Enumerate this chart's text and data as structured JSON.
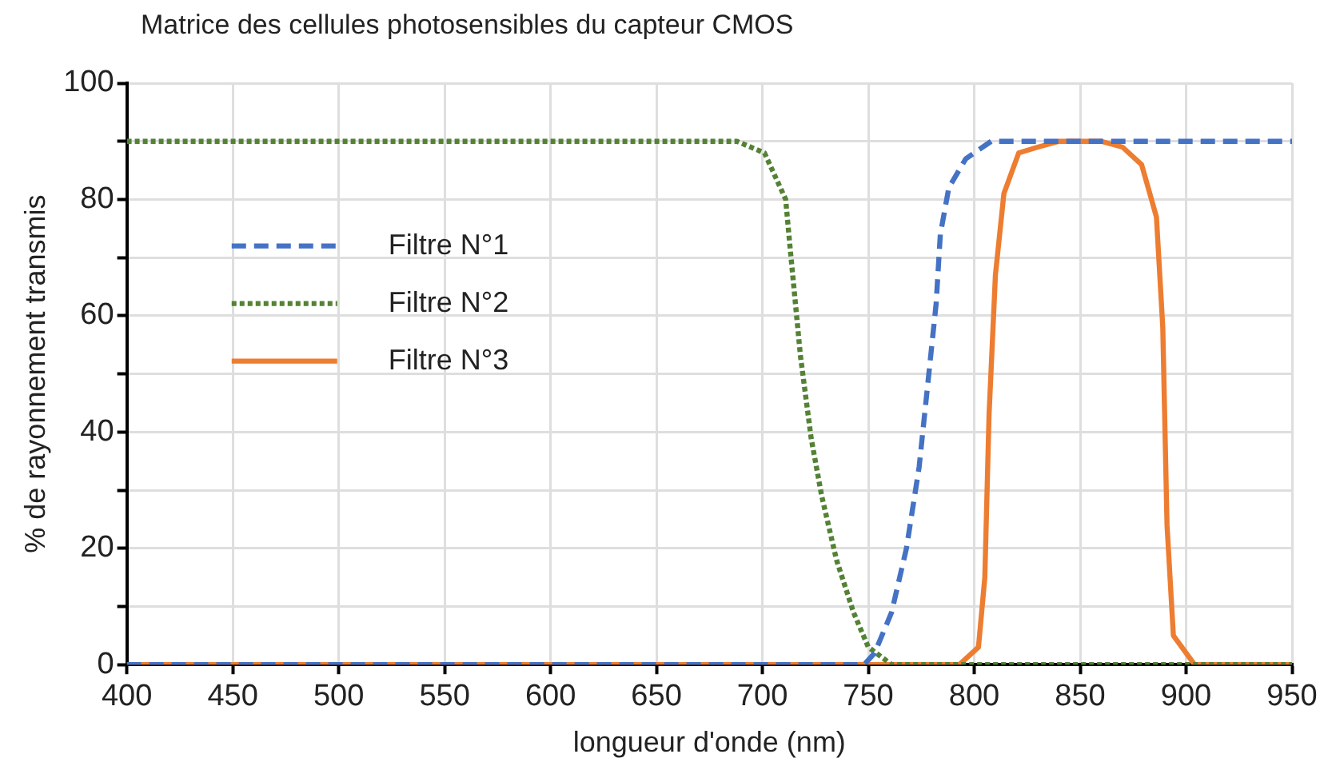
{
  "chart_data": {
    "type": "line",
    "title": "Matrice des cellules photosensibles du capteur CMOS",
    "xlabel": "longueur d'onde (nm)",
    "ylabel": "% de rayonnement transmis",
    "xlim": [
      400,
      950
    ],
    "xticks": [
      400,
      450,
      500,
      550,
      600,
      650,
      700,
      750,
      800,
      850,
      900,
      950
    ],
    "ylim": [
      0,
      100
    ],
    "yticks": [
      0,
      {
        "value": 10,
        "label": null
      },
      20,
      {
        "value": 30,
        "label": null
      },
      40,
      {
        "value": 50,
        "label": null
      },
      60,
      {
        "value": 70,
        "label": null
      },
      80,
      {
        "value": 90,
        "label": null
      },
      100
    ],
    "grid": true,
    "legend": "left",
    "marker": "none",
    "series": [
      {
        "name": "Filtre N°1",
        "color": "#4472c4",
        "line_style": "dashed",
        "x": [
          400,
          748,
          753,
          761,
          768,
          774,
          778,
          782,
          784,
          788,
          796,
          808,
          950
        ],
        "values": [
          0,
          0,
          2,
          9,
          20,
          34,
          48,
          62,
          74,
          82,
          87,
          90,
          90
        ]
      },
      {
        "name": "Filtre N°2",
        "color": "#548235",
        "line_style": "dotted",
        "x": [
          400,
          688,
          701,
          711,
          713,
          718,
          723,
          728,
          735,
          743,
          750,
          761,
          950
        ],
        "values": [
          90,
          90,
          88,
          80,
          72,
          53,
          39,
          29,
          18,
          9,
          3,
          0,
          0
        ]
      },
      {
        "name": "Filtre N°3",
        "color": "#ed7d31",
        "line_style": "solid",
        "x": [
          400,
          793,
          802,
          805,
          807,
          810,
          814,
          821,
          830,
          840,
          848,
          860,
          870,
          879,
          886,
          889,
          891,
          894,
          904,
          950
        ],
        "values": [
          0,
          0,
          3,
          15,
          43,
          67,
          81,
          88,
          89,
          90,
          90,
          90,
          89,
          86,
          77,
          58,
          24,
          5,
          0,
          0
        ]
      }
    ]
  }
}
